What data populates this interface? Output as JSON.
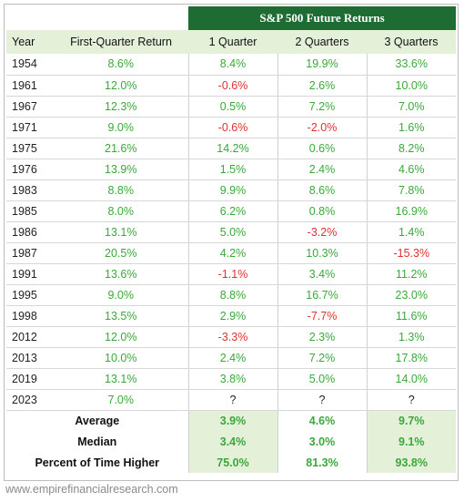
{
  "table": {
    "banner": "S&P 500 Future Returns",
    "headers": [
      "Year",
      "First-Quarter Return",
      "1 Quarter",
      "2 Quarters",
      "3 Quarters"
    ],
    "rows": [
      [
        "1954",
        "8.6%",
        "8.4%",
        "19.9%",
        "33.6%"
      ],
      [
        "1961",
        "12.0%",
        "-0.6%",
        "2.6%",
        "10.0%"
      ],
      [
        "1967",
        "12.3%",
        "0.5%",
        "7.2%",
        "7.0%"
      ],
      [
        "1971",
        "9.0%",
        "-0.6%",
        "-2.0%",
        "1.6%"
      ],
      [
        "1975",
        "21.6%",
        "14.2%",
        "0.6%",
        "8.2%"
      ],
      [
        "1976",
        "13.9%",
        "1.5%",
        "2.4%",
        "4.6%"
      ],
      [
        "1983",
        "8.8%",
        "9.9%",
        "8.6%",
        "7.8%"
      ],
      [
        "1985",
        "8.0%",
        "6.2%",
        "0.8%",
        "16.9%"
      ],
      [
        "1986",
        "13.1%",
        "5.0%",
        "-3.2%",
        "1.4%"
      ],
      [
        "1987",
        "20.5%",
        "4.2%",
        "10.3%",
        "-15.3%"
      ],
      [
        "1991",
        "13.6%",
        "-1.1%",
        "3.4%",
        "11.2%"
      ],
      [
        "1995",
        "9.0%",
        "8.8%",
        "16.7%",
        "23.0%"
      ],
      [
        "1998",
        "13.5%",
        "2.9%",
        "-7.7%",
        "11.6%"
      ],
      [
        "2012",
        "12.0%",
        "-3.3%",
        "2.3%",
        "1.3%"
      ],
      [
        "2013",
        "10.0%",
        "2.4%",
        "7.2%",
        "17.8%"
      ],
      [
        "2019",
        "13.1%",
        "3.8%",
        "5.0%",
        "14.0%"
      ],
      [
        "2023",
        "7.0%",
        "?",
        "?",
        "?"
      ]
    ],
    "summary": [
      [
        "Average",
        "3.9%",
        "4.6%",
        "9.7%"
      ],
      [
        "Median",
        "3.4%",
        "3.0%",
        "9.1%"
      ],
      [
        "Percent of Time Higher",
        "75.0%",
        "81.3%",
        "93.8%"
      ]
    ]
  },
  "footer": "www.empirefinancialresearch.com",
  "colors": {
    "banner": "#1e6b34",
    "header_band": "#e4f0d8",
    "positive": "#3aa83a",
    "negative": "#e03030"
  }
}
